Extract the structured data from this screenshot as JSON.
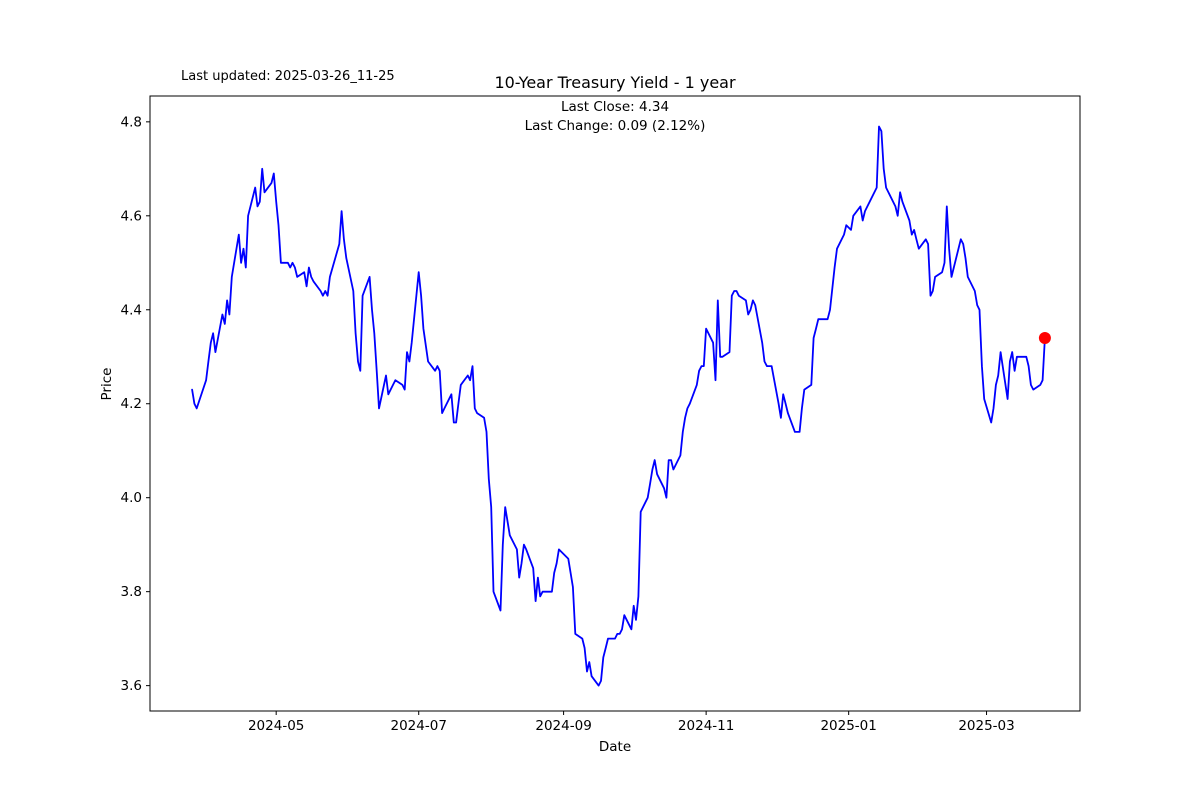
{
  "header": {
    "last_updated": "Last updated: 2025-03-26_11-25",
    "title": "10-Year Treasury Yield - 1 year",
    "last_close_label": "Last Close: 4.34",
    "last_change_label": "Last Change: 0.09 (2.12%)"
  },
  "chart_data": {
    "type": "line",
    "title": "10-Year Treasury Yield - 1 year",
    "subtitle_lines": [
      "Last Close: 4.34",
      "Last Change: 0.09 (2.12%)"
    ],
    "xlabel": "Date",
    "ylabel": "Price",
    "last_close": 4.34,
    "last_change": 0.09,
    "last_change_pct": 2.12,
    "line_color": "#0000ff",
    "marker_color": "#ff0000",
    "axis_color": "#000000",
    "grid": false,
    "legend": "none",
    "ylim": [
      3.546,
      4.855
    ],
    "xlim": [
      "2024-03-08",
      "2025-04-10"
    ],
    "yticks": [
      3.6,
      3.8,
      4.0,
      4.2,
      4.4,
      4.6,
      4.8
    ],
    "xticks": [
      {
        "date": "2024-05-01",
        "label": "2024-05"
      },
      {
        "date": "2024-07-01",
        "label": "2024-07"
      },
      {
        "date": "2024-09-01",
        "label": "2024-09"
      },
      {
        "date": "2024-11-01",
        "label": "2024-11"
      },
      {
        "date": "2025-01-01",
        "label": "2025-01"
      },
      {
        "date": "2025-03-01",
        "label": "2025-03"
      }
    ],
    "series": [
      {
        "name": "10-Year Treasury Yield",
        "points": [
          [
            "2024-03-26",
            4.23
          ],
          [
            "2024-03-27",
            4.2
          ],
          [
            "2024-03-28",
            4.19
          ],
          [
            "2024-04-01",
            4.25
          ],
          [
            "2024-04-02",
            4.29
          ],
          [
            "2024-04-03",
            4.33
          ],
          [
            "2024-04-04",
            4.35
          ],
          [
            "2024-04-05",
            4.31
          ],
          [
            "2024-04-08",
            4.39
          ],
          [
            "2024-04-09",
            4.37
          ],
          [
            "2024-04-10",
            4.42
          ],
          [
            "2024-04-11",
            4.39
          ],
          [
            "2024-04-12",
            4.47
          ],
          [
            "2024-04-15",
            4.56
          ],
          [
            "2024-04-16",
            4.5
          ],
          [
            "2024-04-17",
            4.53
          ],
          [
            "2024-04-18",
            4.49
          ],
          [
            "2024-04-19",
            4.6
          ],
          [
            "2024-04-22",
            4.66
          ],
          [
            "2024-04-23",
            4.62
          ],
          [
            "2024-04-24",
            4.63
          ],
          [
            "2024-04-25",
            4.7
          ],
          [
            "2024-04-26",
            4.65
          ],
          [
            "2024-04-29",
            4.67
          ],
          [
            "2024-04-30",
            4.69
          ],
          [
            "2024-05-01",
            4.63
          ],
          [
            "2024-05-02",
            4.58
          ],
          [
            "2024-05-03",
            4.5
          ],
          [
            "2024-05-06",
            4.5
          ],
          [
            "2024-05-07",
            4.49
          ],
          [
            "2024-05-08",
            4.5
          ],
          [
            "2024-05-09",
            4.49
          ],
          [
            "2024-05-10",
            4.47
          ],
          [
            "2024-05-13",
            4.48
          ],
          [
            "2024-05-14",
            4.45
          ],
          [
            "2024-05-15",
            4.49
          ],
          [
            "2024-05-16",
            4.47
          ],
          [
            "2024-05-17",
            4.46
          ],
          [
            "2024-05-20",
            4.44
          ],
          [
            "2024-05-21",
            4.43
          ],
          [
            "2024-05-22",
            4.44
          ],
          [
            "2024-05-23",
            4.43
          ],
          [
            "2024-05-24",
            4.47
          ],
          [
            "2024-05-28",
            4.54
          ],
          [
            "2024-05-29",
            4.61
          ],
          [
            "2024-05-30",
            4.55
          ],
          [
            "2024-05-31",
            4.51
          ],
          [
            "2024-06-03",
            4.44
          ],
          [
            "2024-06-04",
            4.35
          ],
          [
            "2024-06-05",
            4.29
          ],
          [
            "2024-06-06",
            4.27
          ],
          [
            "2024-06-07",
            4.43
          ],
          [
            "2024-06-10",
            4.47
          ],
          [
            "2024-06-11",
            4.4
          ],
          [
            "2024-06-12",
            4.35
          ],
          [
            "2024-06-13",
            4.27
          ],
          [
            "2024-06-14",
            4.19
          ],
          [
            "2024-06-17",
            4.26
          ],
          [
            "2024-06-18",
            4.22
          ],
          [
            "2024-06-20",
            4.24
          ],
          [
            "2024-06-21",
            4.25
          ],
          [
            "2024-06-24",
            4.24
          ],
          [
            "2024-06-25",
            4.23
          ],
          [
            "2024-06-26",
            4.31
          ],
          [
            "2024-06-27",
            4.29
          ],
          [
            "2024-06-28",
            4.33
          ],
          [
            "2024-07-01",
            4.48
          ],
          [
            "2024-07-02",
            4.43
          ],
          [
            "2024-07-03",
            4.36
          ],
          [
            "2024-07-05",
            4.29
          ],
          [
            "2024-07-08",
            4.27
          ],
          [
            "2024-07-09",
            4.28
          ],
          [
            "2024-07-10",
            4.27
          ],
          [
            "2024-07-11",
            4.18
          ],
          [
            "2024-07-12",
            4.19
          ],
          [
            "2024-07-15",
            4.22
          ],
          [
            "2024-07-16",
            4.16
          ],
          [
            "2024-07-17",
            4.16
          ],
          [
            "2024-07-18",
            4.2
          ],
          [
            "2024-07-19",
            4.24
          ],
          [
            "2024-07-22",
            4.26
          ],
          [
            "2024-07-23",
            4.25
          ],
          [
            "2024-07-24",
            4.28
          ],
          [
            "2024-07-25",
            4.19
          ],
          [
            "2024-07-26",
            4.18
          ],
          [
            "2024-07-29",
            4.17
          ],
          [
            "2024-07-30",
            4.14
          ],
          [
            "2024-07-31",
            4.04
          ],
          [
            "2024-08-01",
            3.98
          ],
          [
            "2024-08-02",
            3.8
          ],
          [
            "2024-08-05",
            3.76
          ],
          [
            "2024-08-06",
            3.9
          ],
          [
            "2024-08-07",
            3.98
          ],
          [
            "2024-08-08",
            3.95
          ],
          [
            "2024-08-09",
            3.92
          ],
          [
            "2024-08-12",
            3.89
          ],
          [
            "2024-08-13",
            3.83
          ],
          [
            "2024-08-14",
            3.86
          ],
          [
            "2024-08-15",
            3.9
          ],
          [
            "2024-08-16",
            3.89
          ],
          [
            "2024-08-19",
            3.85
          ],
          [
            "2024-08-20",
            3.78
          ],
          [
            "2024-08-21",
            3.83
          ],
          [
            "2024-08-22",
            3.79
          ],
          [
            "2024-08-23",
            3.8
          ],
          [
            "2024-08-26",
            3.8
          ],
          [
            "2024-08-27",
            3.8
          ],
          [
            "2024-08-28",
            3.84
          ],
          [
            "2024-08-29",
            3.86
          ],
          [
            "2024-08-30",
            3.89
          ],
          [
            "2024-09-03",
            3.87
          ],
          [
            "2024-09-04",
            3.84
          ],
          [
            "2024-09-05",
            3.81
          ],
          [
            "2024-09-06",
            3.71
          ],
          [
            "2024-09-09",
            3.7
          ],
          [
            "2024-09-10",
            3.68
          ],
          [
            "2024-09-11",
            3.63
          ],
          [
            "2024-09-12",
            3.65
          ],
          [
            "2024-09-13",
            3.62
          ],
          [
            "2024-09-16",
            3.6
          ],
          [
            "2024-09-17",
            3.61
          ],
          [
            "2024-09-18",
            3.66
          ],
          [
            "2024-09-19",
            3.68
          ],
          [
            "2024-09-20",
            3.7
          ],
          [
            "2024-09-23",
            3.7
          ],
          [
            "2024-09-24",
            3.71
          ],
          [
            "2024-09-25",
            3.71
          ],
          [
            "2024-09-26",
            3.72
          ],
          [
            "2024-09-27",
            3.75
          ],
          [
            "2024-09-30",
            3.72
          ],
          [
            "2024-10-01",
            3.77
          ],
          [
            "2024-10-02",
            3.74
          ],
          [
            "2024-10-03",
            3.79
          ],
          [
            "2024-10-04",
            3.97
          ],
          [
            "2024-10-07",
            4.0
          ],
          [
            "2024-10-08",
            4.03
          ],
          [
            "2024-10-09",
            4.06
          ],
          [
            "2024-10-10",
            4.08
          ],
          [
            "2024-10-11",
            4.05
          ],
          [
            "2024-10-14",
            4.02
          ],
          [
            "2024-10-15",
            4.0
          ],
          [
            "2024-10-16",
            4.08
          ],
          [
            "2024-10-17",
            4.08
          ],
          [
            "2024-10-18",
            4.06
          ],
          [
            "2024-10-21",
            4.09
          ],
          [
            "2024-10-22",
            4.14
          ],
          [
            "2024-10-23",
            4.17
          ],
          [
            "2024-10-24",
            4.19
          ],
          [
            "2024-10-25",
            4.2
          ],
          [
            "2024-10-28",
            4.24
          ],
          [
            "2024-10-29",
            4.27
          ],
          [
            "2024-10-30",
            4.28
          ],
          [
            "2024-10-31",
            4.28
          ],
          [
            "2024-11-01",
            4.36
          ],
          [
            "2024-11-04",
            4.33
          ],
          [
            "2024-11-05",
            4.25
          ],
          [
            "2024-11-06",
            4.42
          ],
          [
            "2024-11-07",
            4.3
          ],
          [
            "2024-11-08",
            4.3
          ],
          [
            "2024-11-11",
            4.31
          ],
          [
            "2024-11-12",
            4.43
          ],
          [
            "2024-11-13",
            4.44
          ],
          [
            "2024-11-14",
            4.44
          ],
          [
            "2024-11-15",
            4.43
          ],
          [
            "2024-11-18",
            4.42
          ],
          [
            "2024-11-19",
            4.39
          ],
          [
            "2024-11-20",
            4.4
          ],
          [
            "2024-11-21",
            4.42
          ],
          [
            "2024-11-22",
            4.41
          ],
          [
            "2024-11-25",
            4.33
          ],
          [
            "2024-11-26",
            4.29
          ],
          [
            "2024-11-27",
            4.28
          ],
          [
            "2024-11-29",
            4.28
          ],
          [
            "2024-12-02",
            4.2
          ],
          [
            "2024-12-03",
            4.17
          ],
          [
            "2024-12-04",
            4.22
          ],
          [
            "2024-12-05",
            4.2
          ],
          [
            "2024-12-06",
            4.18
          ],
          [
            "2024-12-09",
            4.14
          ],
          [
            "2024-12-10",
            4.14
          ],
          [
            "2024-12-11",
            4.14
          ],
          [
            "2024-12-12",
            4.19
          ],
          [
            "2024-12-13",
            4.23
          ],
          [
            "2024-12-16",
            4.24
          ],
          [
            "2024-12-17",
            4.34
          ],
          [
            "2024-12-18",
            4.36
          ],
          [
            "2024-12-19",
            4.38
          ],
          [
            "2024-12-20",
            4.38
          ],
          [
            "2024-12-23",
            4.38
          ],
          [
            "2024-12-24",
            4.4
          ],
          [
            "2024-12-26",
            4.49
          ],
          [
            "2024-12-27",
            4.53
          ],
          [
            "2024-12-30",
            4.56
          ],
          [
            "2024-12-31",
            4.58
          ],
          [
            "2025-01-02",
            4.57
          ],
          [
            "2025-01-03",
            4.6
          ],
          [
            "2025-01-06",
            4.62
          ],
          [
            "2025-01-07",
            4.59
          ],
          [
            "2025-01-08",
            4.61
          ],
          [
            "2025-01-10",
            4.63
          ],
          [
            "2025-01-13",
            4.66
          ],
          [
            "2025-01-14",
            4.79
          ],
          [
            "2025-01-15",
            4.78
          ],
          [
            "2025-01-16",
            4.7
          ],
          [
            "2025-01-17",
            4.66
          ],
          [
            "2025-01-21",
            4.62
          ],
          [
            "2025-01-22",
            4.6
          ],
          [
            "2025-01-23",
            4.65
          ],
          [
            "2025-01-24",
            4.63
          ],
          [
            "2025-01-27",
            4.59
          ],
          [
            "2025-01-28",
            4.56
          ],
          [
            "2025-01-29",
            4.57
          ],
          [
            "2025-01-30",
            4.55
          ],
          [
            "2025-01-31",
            4.53
          ],
          [
            "2025-02-03",
            4.55
          ],
          [
            "2025-02-04",
            4.54
          ],
          [
            "2025-02-05",
            4.43
          ],
          [
            "2025-02-06",
            4.44
          ],
          [
            "2025-02-07",
            4.47
          ],
          [
            "2025-02-10",
            4.48
          ],
          [
            "2025-02-11",
            4.5
          ],
          [
            "2025-02-12",
            4.62
          ],
          [
            "2025-02-13",
            4.53
          ],
          [
            "2025-02-14",
            4.47
          ],
          [
            "2025-02-18",
            4.55
          ],
          [
            "2025-02-19",
            4.54
          ],
          [
            "2025-02-20",
            4.51
          ],
          [
            "2025-02-21",
            4.47
          ],
          [
            "2025-02-24",
            4.44
          ],
          [
            "2025-02-25",
            4.41
          ],
          [
            "2025-02-26",
            4.4
          ],
          [
            "2025-02-27",
            4.28
          ],
          [
            "2025-02-28",
            4.21
          ],
          [
            "2025-03-03",
            4.16
          ],
          [
            "2025-03-04",
            4.19
          ],
          [
            "2025-03-05",
            4.24
          ],
          [
            "2025-03-06",
            4.26
          ],
          [
            "2025-03-07",
            4.31
          ],
          [
            "2025-03-10",
            4.21
          ],
          [
            "2025-03-11",
            4.29
          ],
          [
            "2025-03-12",
            4.31
          ],
          [
            "2025-03-13",
            4.27
          ],
          [
            "2025-03-14",
            4.3
          ],
          [
            "2025-03-17",
            4.3
          ],
          [
            "2025-03-18",
            4.3
          ],
          [
            "2025-03-19",
            4.28
          ],
          [
            "2025-03-20",
            4.24
          ],
          [
            "2025-03-21",
            4.23
          ],
          [
            "2025-03-24",
            4.24
          ],
          [
            "2025-03-25",
            4.25
          ],
          [
            "2025-03-26",
            4.34
          ]
        ]
      }
    ]
  }
}
